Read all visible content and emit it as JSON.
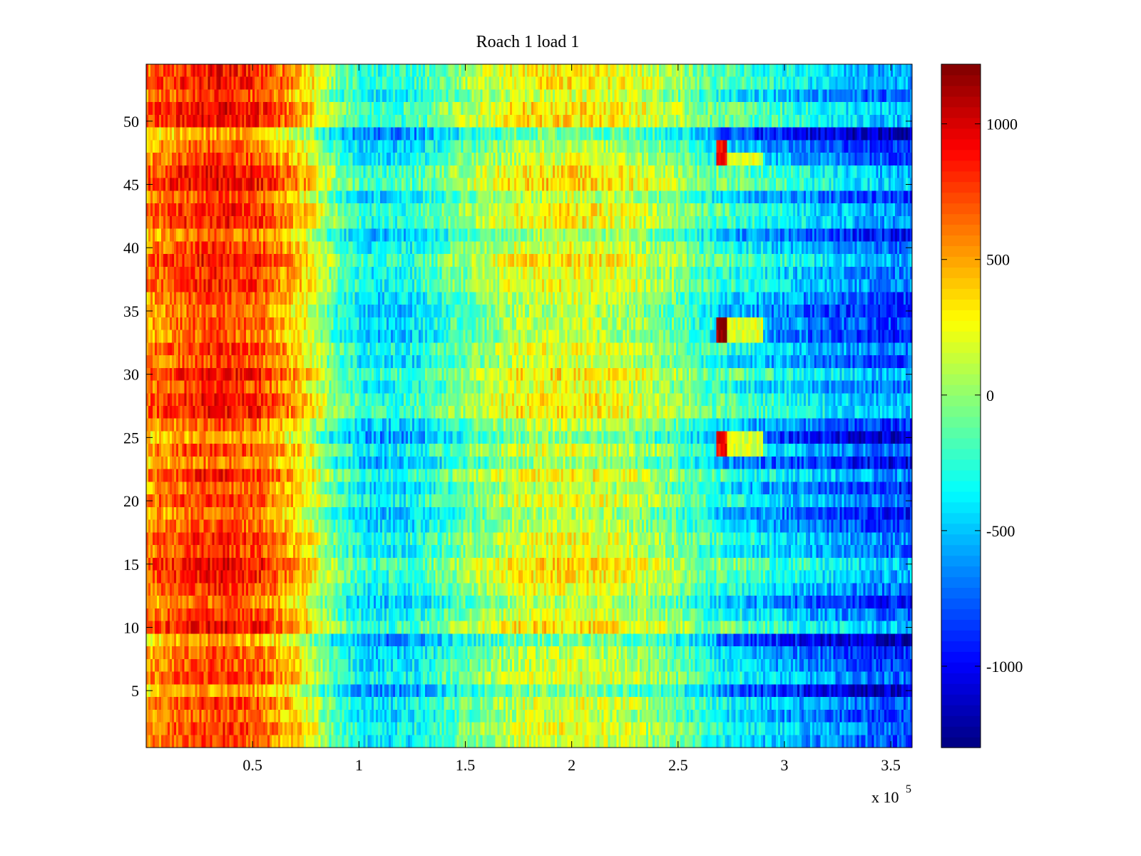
{
  "chart_data": {
    "type": "heatmap",
    "title": "Roach 1 load 1",
    "xlabel": "",
    "ylabel": "",
    "x_range": [
      0,
      360000
    ],
    "y_range": [
      0.5,
      54.5
    ],
    "rows": 54,
    "x_scale_label": {
      "base": "x 10",
      "exponent": "5"
    },
    "x_ticks": [
      {
        "value": 50000,
        "label": "0.5"
      },
      {
        "value": 100000,
        "label": "1"
      },
      {
        "value": 150000,
        "label": "1.5"
      },
      {
        "value": 200000,
        "label": "2"
      },
      {
        "value": 250000,
        "label": "2.5"
      },
      {
        "value": 300000,
        "label": "3"
      },
      {
        "value": 350000,
        "label": "3.5"
      }
    ],
    "y_ticks": [
      {
        "value": 5,
        "label": "5"
      },
      {
        "value": 10,
        "label": "10"
      },
      {
        "value": 15,
        "label": "15"
      },
      {
        "value": 20,
        "label": "20"
      },
      {
        "value": 25,
        "label": "25"
      },
      {
        "value": 30,
        "label": "30"
      },
      {
        "value": 35,
        "label": "35"
      },
      {
        "value": 40,
        "label": "40"
      },
      {
        "value": 45,
        "label": "45"
      },
      {
        "value": 50,
        "label": "50"
      }
    ],
    "colorbar": {
      "colormap": "jet",
      "range": [
        -1300,
        1220
      ],
      "ticks": [
        {
          "value": 1000,
          "label": "1000"
        },
        {
          "value": 500,
          "label": "500"
        },
        {
          "value": 0,
          "label": "0"
        },
        {
          "value": -500,
          "label": "-500"
        },
        {
          "value": -1000,
          "label": "-1000"
        }
      ]
    },
    "trend_profile": {
      "x": [
        0,
        20000,
        35000,
        55000,
        75000,
        90000,
        105000,
        125000,
        150000,
        175000,
        200000,
        225000,
        250000,
        268000,
        290000,
        320000,
        345000,
        360000
      ],
      "value": [
        520,
        700,
        760,
        650,
        280,
        -200,
        -420,
        -380,
        -100,
        130,
        180,
        100,
        -100,
        -320,
        -480,
        -650,
        -780,
        -800
      ]
    },
    "row_offsets": [
      0,
      60,
      -40,
      30,
      -220,
      50,
      -30,
      -60,
      -240,
      180,
      40,
      -80,
      60,
      150,
      200,
      30,
      90,
      -40,
      -90,
      70,
      -60,
      110,
      -150,
      40,
      -210,
      -50,
      170,
      150,
      40,
      170,
      -20,
      80,
      -80,
      -30,
      -90,
      -20,
      90,
      60,
      160,
      40,
      -110,
      120,
      130,
      -40,
      210,
      170,
      10,
      -60,
      -250,
      180,
      190,
      20,
      150,
      130
    ],
    "highlights": [
      {
        "x": [
          268000,
          273000
        ],
        "rows": [
          47,
          48
        ],
        "value": 920
      },
      {
        "x": [
          273000,
          290000
        ],
        "rows": [
          47,
          47
        ],
        "value": 200
      },
      {
        "x": [
          268000,
          273000
        ],
        "rows": [
          33,
          34
        ],
        "value": 1180
      },
      {
        "x": [
          273000,
          290000
        ],
        "rows": [
          33,
          34
        ],
        "value": 200
      },
      {
        "x": [
          268000,
          273000
        ],
        "rows": [
          24,
          25
        ],
        "value": 900
      },
      {
        "x": [
          273000,
          290000
        ],
        "rows": [
          24,
          25
        ],
        "value": 180
      }
    ]
  }
}
